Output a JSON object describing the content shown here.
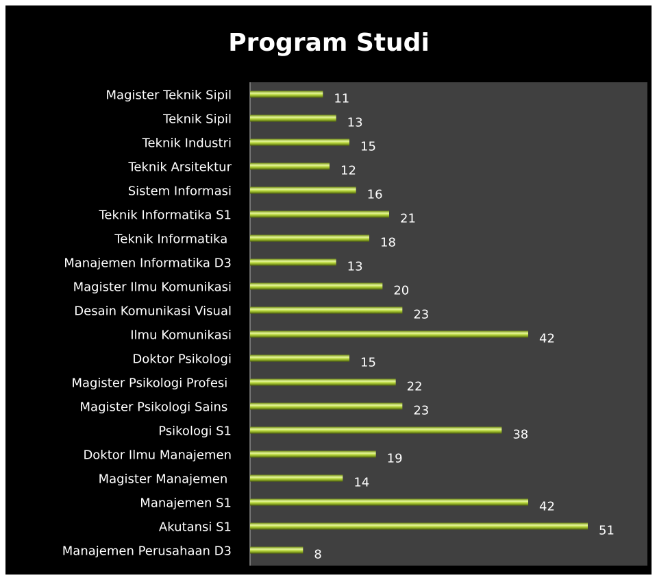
{
  "chart_data": {
    "type": "bar",
    "orientation": "horizontal",
    "title": "Program Studi",
    "categories": [
      "Magister Teknik Sipil",
      "Teknik Sipil",
      "Teknik Industri",
      "Teknik Arsitektur",
      "Sistem Informasi",
      "Teknik Informatika S1",
      "Teknik Informatika ",
      "Manajemen Informatika D3",
      "Magister Ilmu Komunikasi",
      "Desain Komunikasi Visual",
      "Ilmu Komunikasi",
      "Doktor Psikologi",
      "Magister Psikologi Profesi ",
      "Magister Psikologi Sains ",
      "Psikologi S1",
      "Doktor Ilmu Manajemen",
      "Magister Manajemen ",
      "Manajemen S1",
      "Akutansi S1",
      "Manajemen Perusahaan D3"
    ],
    "values": [
      11,
      13,
      15,
      12,
      16,
      21,
      18,
      13,
      20,
      23,
      42,
      15,
      22,
      23,
      38,
      19,
      14,
      42,
      51,
      8
    ],
    "color": "#b5d43a",
    "xlim": [
      0,
      60
    ]
  }
}
